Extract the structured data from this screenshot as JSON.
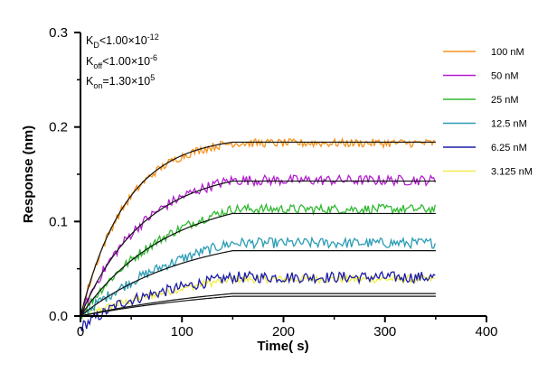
{
  "chart_data": {
    "type": "line",
    "title": "",
    "xlabel": "Time( s)",
    "ylabel": "Response (nm)",
    "xlim": [
      0,
      400
    ],
    "ylim": [
      0,
      0.3
    ],
    "x_ticks": [
      "0",
      "100",
      "200",
      "300",
      "400"
    ],
    "y_ticks": [
      "0.0",
      "0.1",
      "0.2",
      "0.3"
    ],
    "grid": false,
    "legend_position": "right",
    "annotations": [
      {
        "base": "K",
        "sub": "D",
        "rest": "<1.00×10",
        "sup": "-12"
      },
      {
        "base": "K",
        "sub": "off",
        "rest": "<1.00×10",
        "sup": "-6"
      },
      {
        "base": "K",
        "sub": "on",
        "rest": "=1.30×10",
        "sup": "5"
      }
    ],
    "association_end": 150,
    "x_end": 350,
    "series": [
      {
        "name": "100 nM",
        "color": "#f7931e",
        "plateau": 0.19,
        "k": 0.022,
        "noise": 0.0045
      },
      {
        "name": "50 nM",
        "color": "#b31fcf",
        "plateau": 0.158,
        "k": 0.016,
        "noise": 0.0055
      },
      {
        "name": "25 nM",
        "color": "#2fb92f",
        "plateau": 0.14,
        "k": 0.011,
        "noise": 0.005
      },
      {
        "name": "12.5 nM",
        "color": "#2b9cb5",
        "plateau": 0.112,
        "k": 0.0078,
        "noise": 0.0055
      },
      {
        "name": "6.25 nM",
        "color": "#1c1ca8",
        "plateau": 0.08,
        "k": 0.0048,
        "noise": 0.006
      },
      {
        "name": "3.125 nM",
        "color": "#f2ec4a",
        "plateau": 0.072,
        "k": 0.0052,
        "noise": 0.004
      }
    ],
    "fit_curves": [
      {
        "plateau": 0.191,
        "k": 0.022
      },
      {
        "plateau": 0.157,
        "k": 0.016
      },
      {
        "plateau": 0.13,
        "k": 0.012
      },
      {
        "plateau": 0.091,
        "k": 0.0095
      },
      {
        "plateau": 0.04,
        "k": 0.006
      },
      {
        "plateau": 0.036,
        "k": 0.0058
      }
    ]
  }
}
